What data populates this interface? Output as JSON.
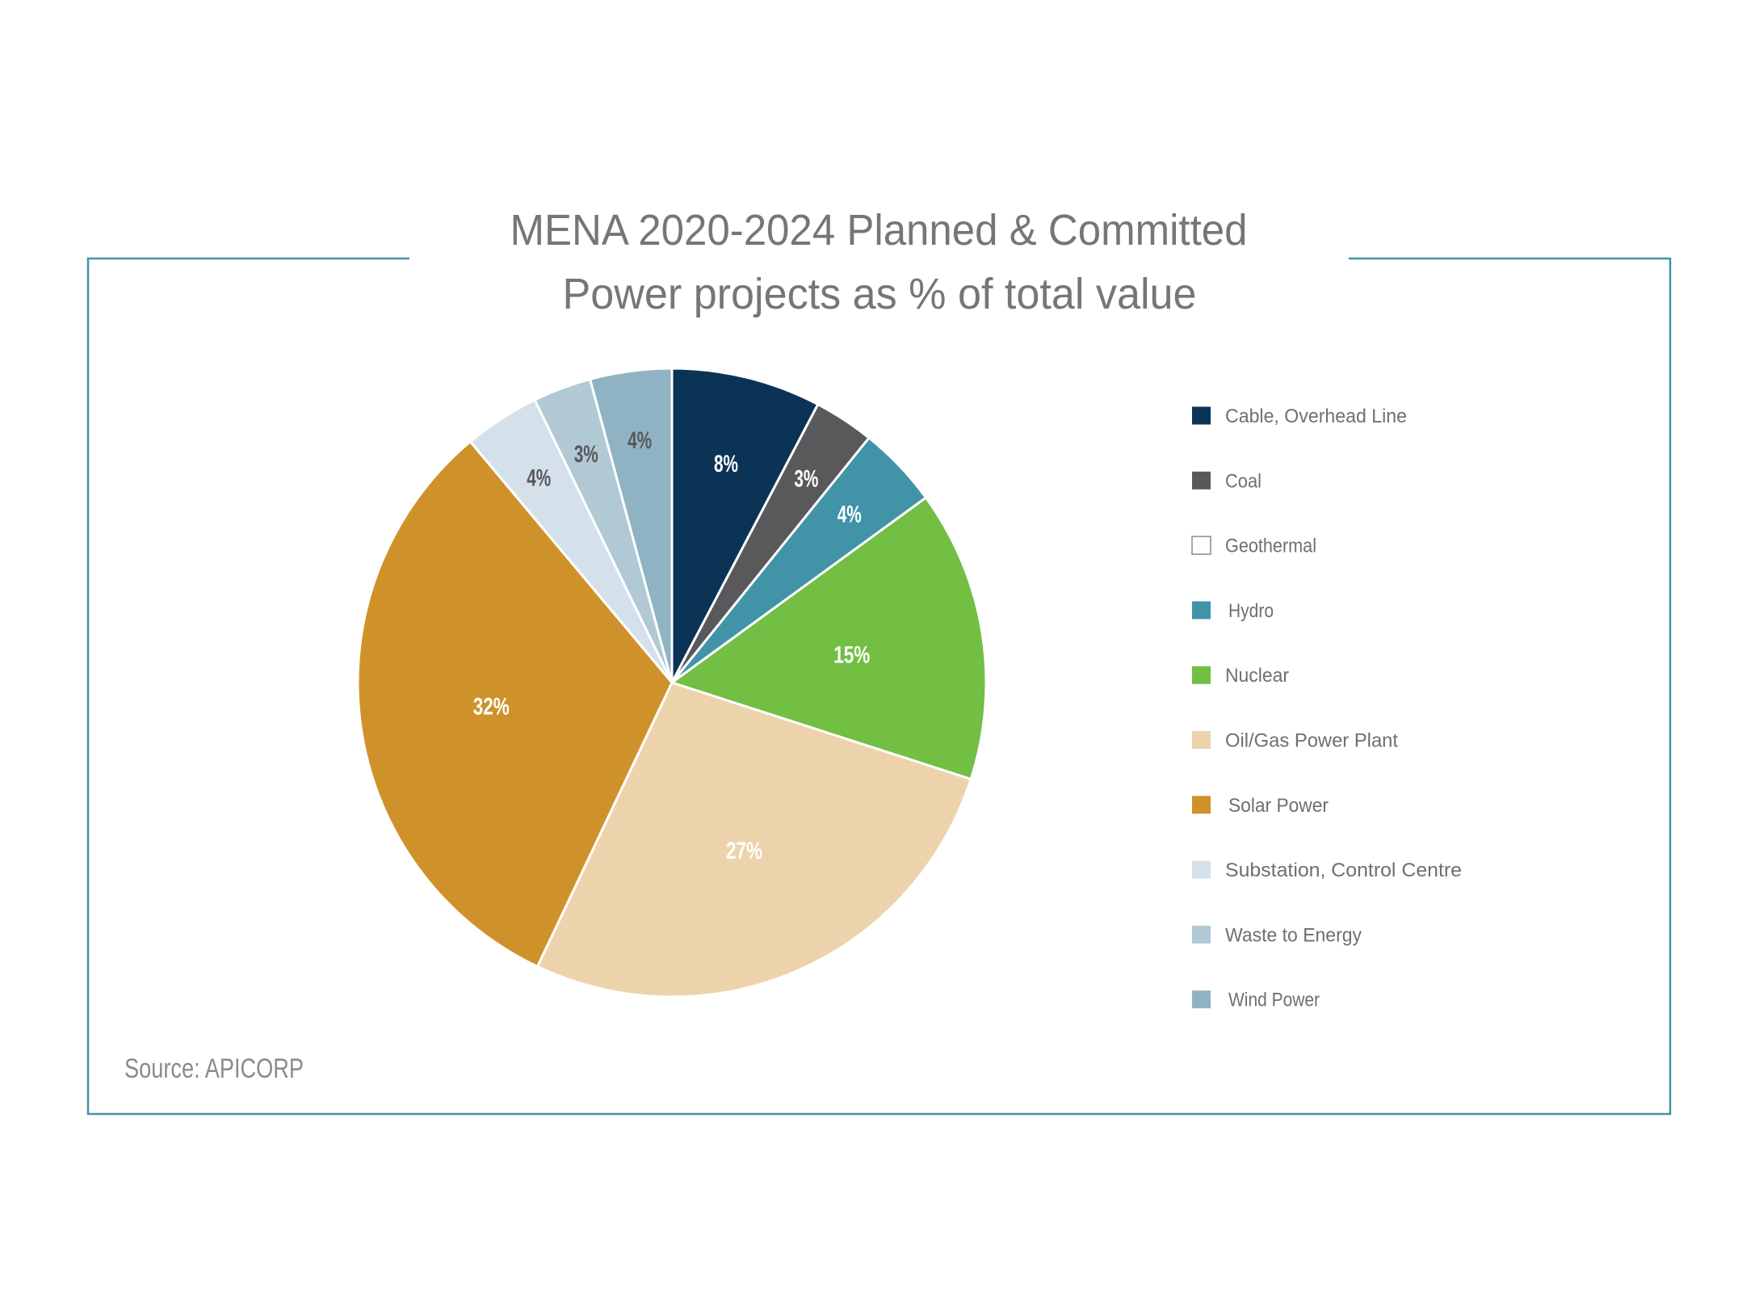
{
  "chart_data": {
    "type": "pie",
    "title": [
      "MENA 2020-2024 Planned & Committed",
      "Power projects as % of total value"
    ],
    "source": "Source: APICORP",
    "start_angle": "12 o'clock, clockwise",
    "legend_position": "right",
    "frame_color": "#4393a8",
    "slices": [
      {
        "name": "Cable, Overhead Line",
        "value": 7.7,
        "label": "8%",
        "color": "#0b3356",
        "label_color": "#ffffff"
      },
      {
        "name": "Coal",
        "value": 3.1,
        "label": "3%",
        "color": "#59595b",
        "label_color": "#ffffff"
      },
      {
        "name": "Geothermal",
        "value": 0,
        "label": "",
        "color": "#ffffff",
        "label_color": "#ffffff"
      },
      {
        "name": "Hydro",
        "value": 4.2,
        "label": "4%",
        "color": "#4193a8",
        "label_color": "#ffffff"
      },
      {
        "name": "Nuclear",
        "value": 15.0,
        "label": "15%",
        "color": "#72bf44",
        "label_color": "#ffffff"
      },
      {
        "name": "Oil/Gas Power Plant",
        "value": 27.1,
        "label": "27%",
        "color": "#edd3ac",
        "label_color": "#ffffff"
      },
      {
        "name": "Solar Power",
        "value": 31.9,
        "label": "32%",
        "color": "#cf922b",
        "label_color": "#ffffff"
      },
      {
        "name": "Substation, Control Centre",
        "value": 3.9,
        "label": "4%",
        "color": "#d5e1ea",
        "label_color": "#58595b"
      },
      {
        "name": "Waste to Energy",
        "value": 3.0,
        "label": "3%",
        "color": "#b0c9d4",
        "label_color": "#58595b"
      },
      {
        "name": "Wind Power",
        "value": 4.2,
        "label": "4%",
        "color": "#8fb3c3",
        "label_color": "#58595b"
      }
    ]
  }
}
